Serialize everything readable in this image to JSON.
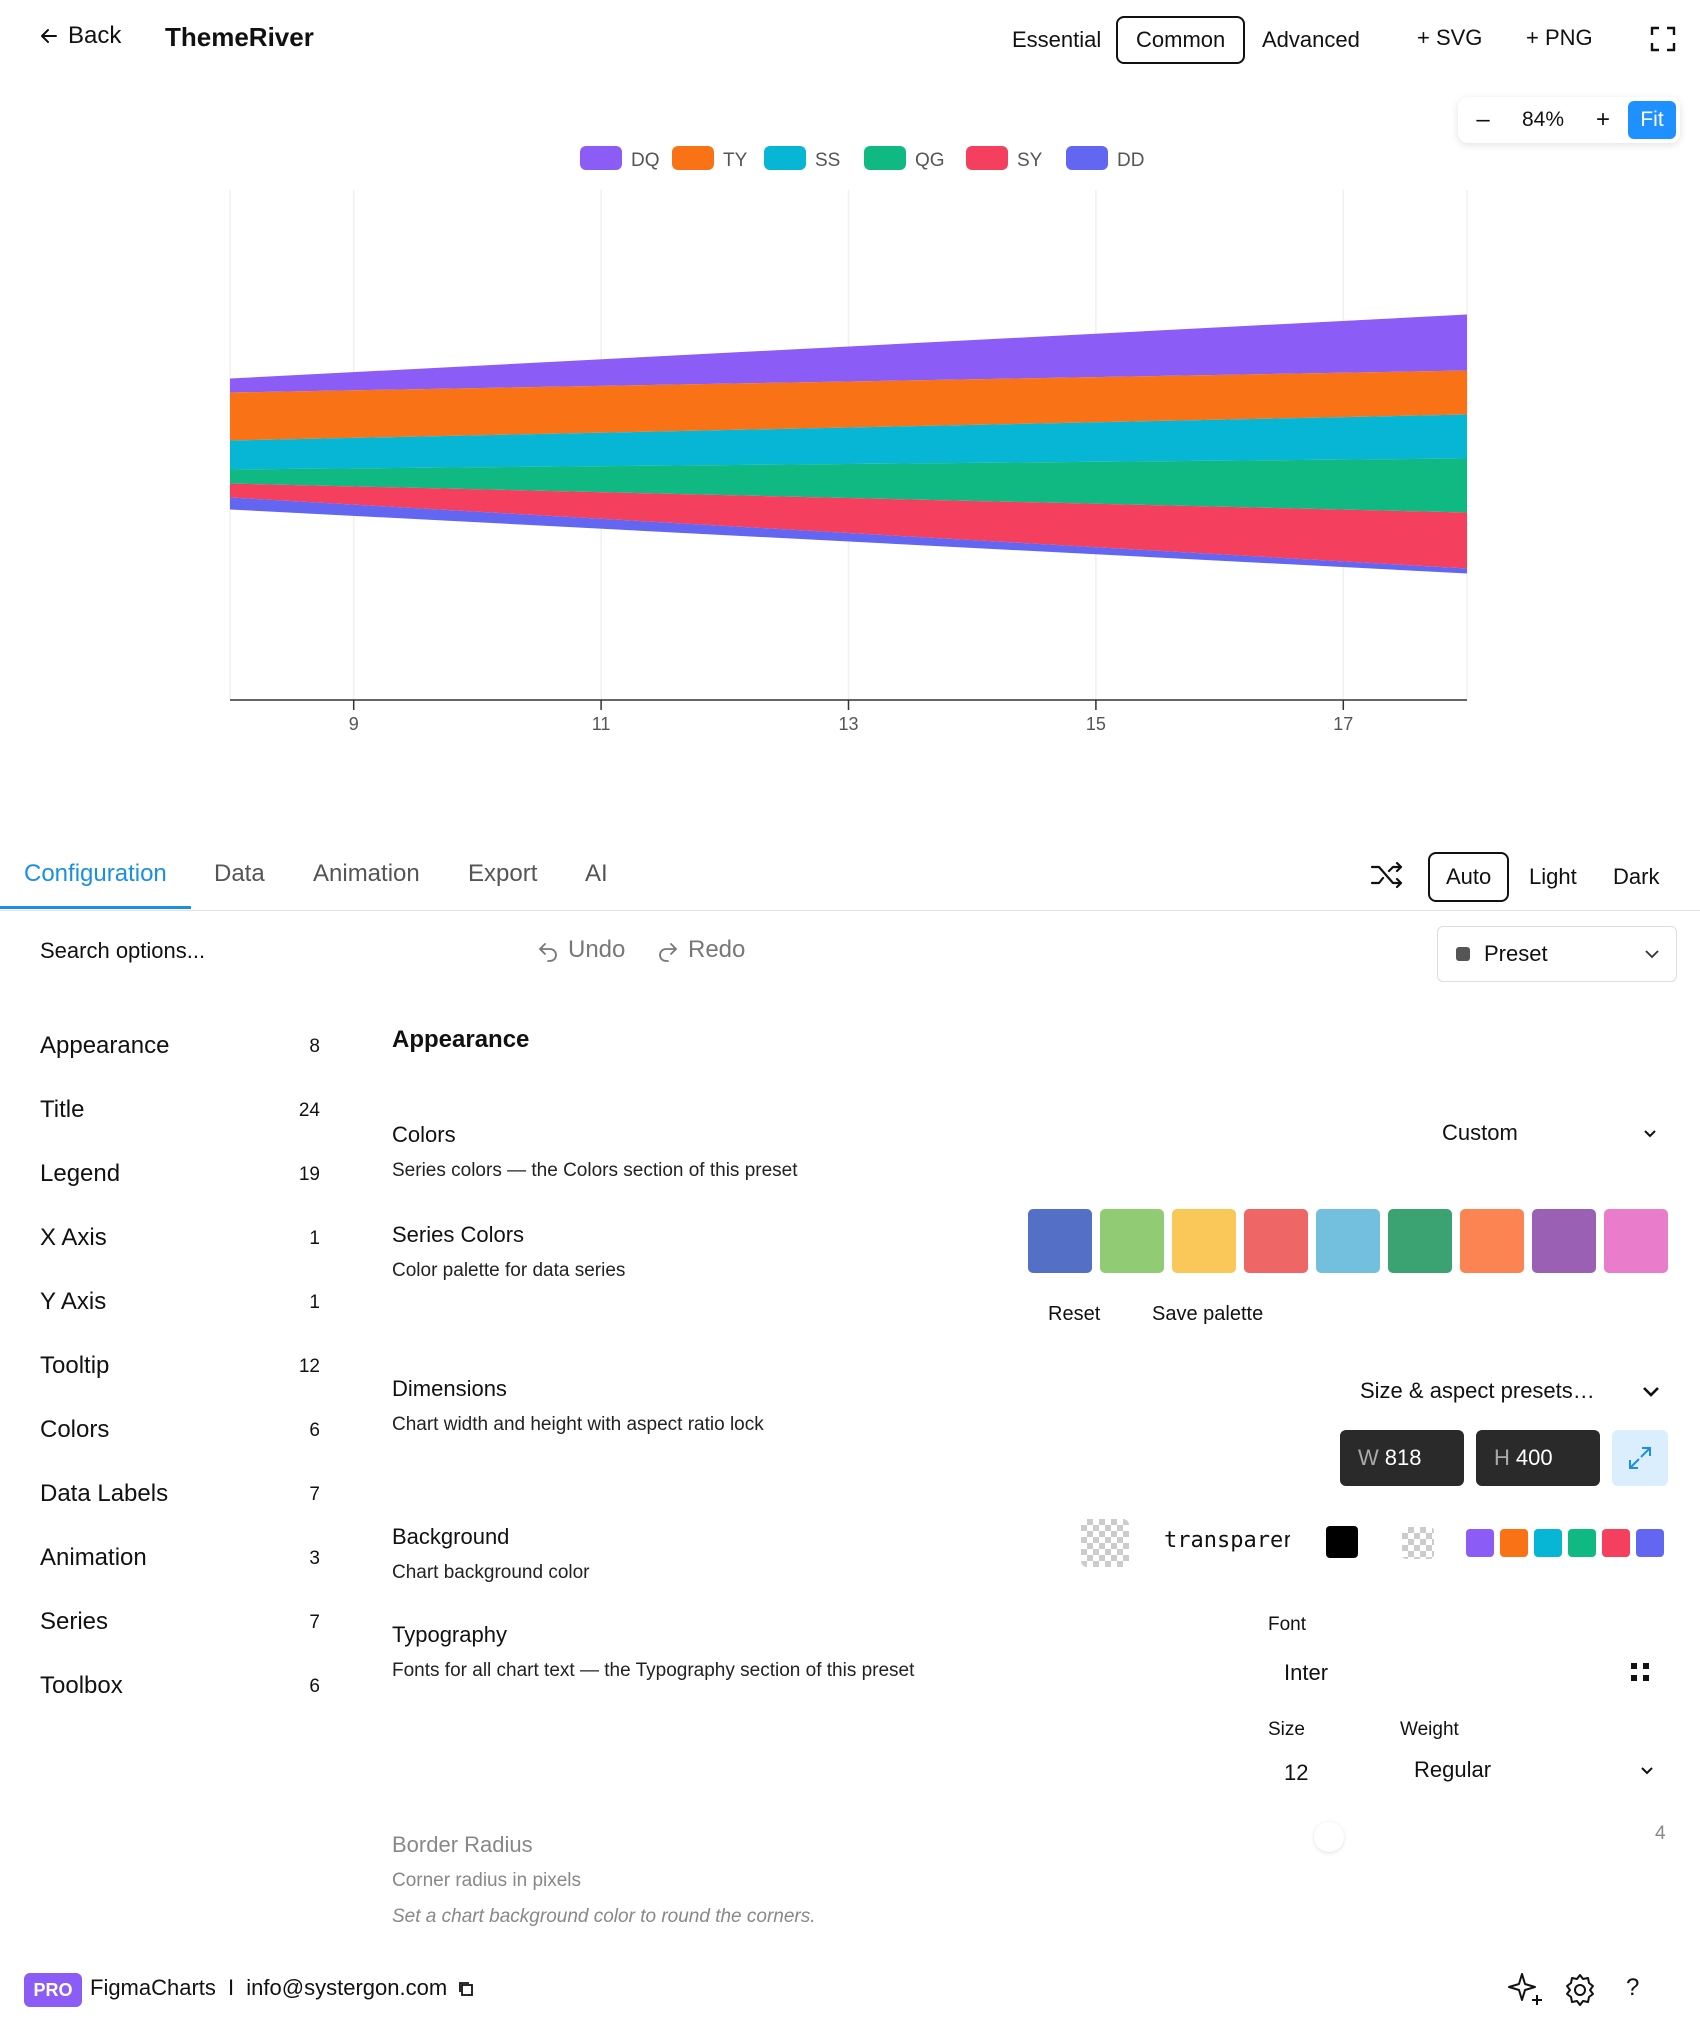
{
  "header": {
    "back_label": "Back",
    "title": "ThemeRiver",
    "modes": [
      "Essential",
      "Common",
      "Advanced"
    ],
    "active_mode": "Common",
    "add_svg": "+ SVG",
    "add_png": "+ PNG",
    "zoom": {
      "minus": "–",
      "value": "84%",
      "plus": "+",
      "fit": "Fit"
    }
  },
  "chart_data": {
    "type": "area",
    "subtype": "themeriver",
    "title": "",
    "xlabel": "",
    "ylabel": "",
    "x_ticks": [
      "9",
      "11",
      "13",
      "15",
      "17"
    ],
    "x": [
      8,
      18
    ],
    "xlim": [
      8,
      18
    ],
    "legend_position": "top-center",
    "series": [
      {
        "name": "DQ",
        "color": "#8b5cf6",
        "values": [
          14,
          56
        ]
      },
      {
        "name": "TY",
        "color": "#f97316",
        "values": [
          48,
          44
        ]
      },
      {
        "name": "SS",
        "color": "#06b6d4",
        "values": [
          29,
          44
        ]
      },
      {
        "name": "QG",
        "color": "#10b981",
        "values": [
          14,
          54
        ]
      },
      {
        "name": "SY",
        "color": "#f43f5e",
        "values": [
          14,
          56
        ]
      },
      {
        "name": "DD",
        "color": "#6366f1",
        "values": [
          12,
          5
        ]
      }
    ]
  },
  "tabs": [
    "Configuration",
    "Data",
    "Animation",
    "Export",
    "AI"
  ],
  "active_tab": "Configuration",
  "theme_modes": [
    "Auto",
    "Light",
    "Dark"
  ],
  "active_theme": "Auto",
  "toolbar": {
    "search_placeholder": "Search options...",
    "undo": "Undo",
    "redo": "Redo",
    "preset": "Preset"
  },
  "sidebar": {
    "items": [
      {
        "label": "Appearance",
        "count": "8"
      },
      {
        "label": "Title",
        "count": "24"
      },
      {
        "label": "Legend",
        "count": "19"
      },
      {
        "label": "X Axis",
        "count": "1"
      },
      {
        "label": "Y Axis",
        "count": "1"
      },
      {
        "label": "Tooltip",
        "count": "12"
      },
      {
        "label": "Colors",
        "count": "6"
      },
      {
        "label": "Data Labels",
        "count": "7"
      },
      {
        "label": "Animation",
        "count": "3"
      },
      {
        "label": "Series",
        "count": "7"
      },
      {
        "label": "Toolbox",
        "count": "6"
      }
    ]
  },
  "content": {
    "section_title": "Appearance",
    "colors": {
      "label": "Colors",
      "desc": "Series colors — the Colors section of this preset",
      "value": "Custom"
    },
    "series_colors": {
      "label": "Series Colors",
      "desc": "Color palette for data series",
      "palette": [
        "#5470c6",
        "#91cc75",
        "#fac858",
        "#ee6666",
        "#73c0de",
        "#3ba272",
        "#fc8452",
        "#9a60b4",
        "#ea7ccc"
      ],
      "reset": "Reset",
      "save": "Save palette"
    },
    "dimensions": {
      "label": "Dimensions",
      "desc": "Chart width and height with aspect ratio lock",
      "presets": "Size & aspect presets…",
      "w_label": "W",
      "w": "818",
      "h_label": "H",
      "h": "400"
    },
    "background": {
      "label": "Background",
      "desc": "Chart background color",
      "value": "transparent",
      "quick_colors": [
        "#8b5cf6",
        "#f97316",
        "#06b6d4",
        "#10b981",
        "#f43f5e",
        "#6366f1"
      ]
    },
    "typography": {
      "label": "Typography",
      "desc": "Fonts for all chart text — the Typography section of this preset",
      "font_label": "Font",
      "font": "Inter",
      "size_label": "Size",
      "size": "12",
      "weight_label": "Weight",
      "weight": "Regular"
    },
    "border_radius": {
      "label": "Border Radius",
      "desc": "Corner radius in pixels",
      "hint": "Set a chart background color to round the corners.",
      "value": "4"
    }
  },
  "footer": {
    "badge": "PRO",
    "brand": "FigmaCharts",
    "sep": "I",
    "email": "info@systergon.com"
  }
}
